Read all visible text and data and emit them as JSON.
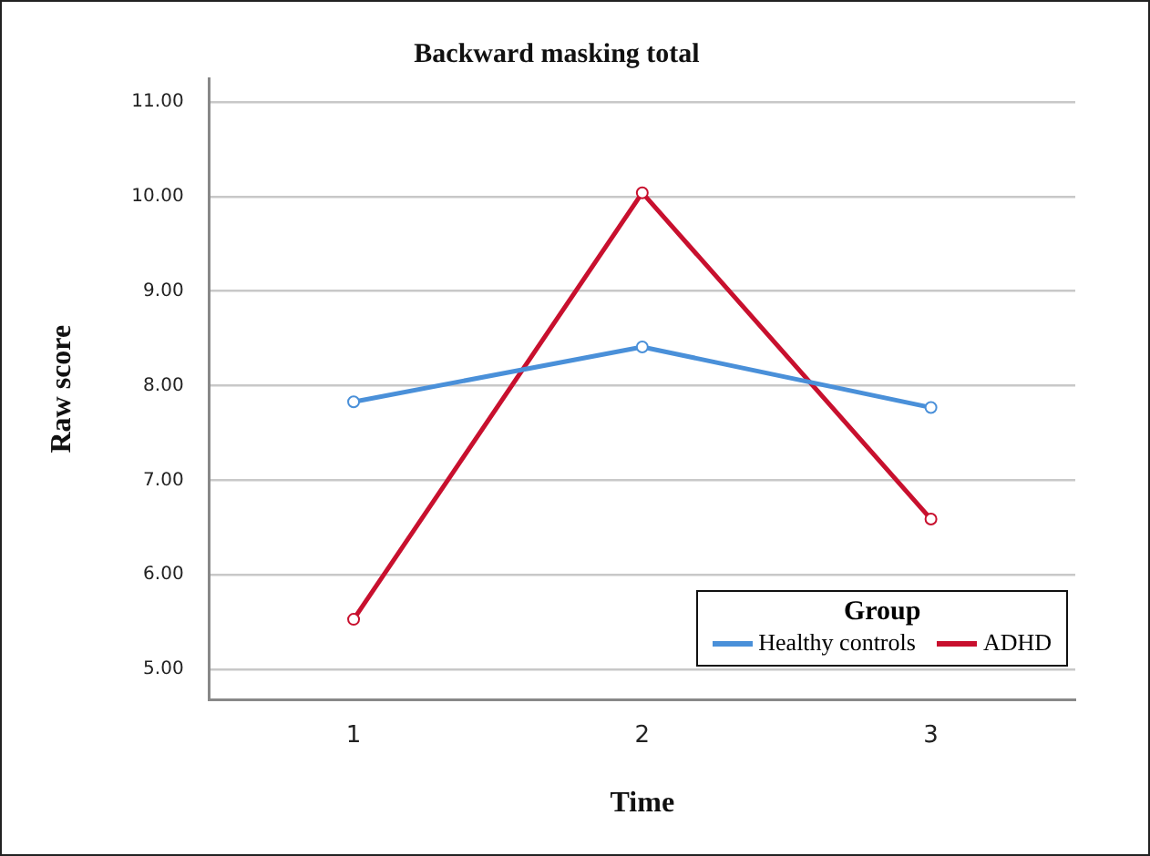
{
  "chart_data": {
    "type": "line",
    "title": "Backward masking total",
    "xlabel": "Time",
    "ylabel": "Raw score",
    "legend_title": "Group",
    "categories": [
      "1",
      "2",
      "3"
    ],
    "series": [
      {
        "name": "Healthy controls",
        "color": "#4a90d9",
        "values": [
          7.83,
          8.41,
          7.77
        ]
      },
      {
        "name": "ADHD",
        "color": "#c8102e",
        "values": [
          5.53,
          10.04,
          6.59
        ]
      }
    ],
    "ylim": [
      4.68,
      11.25
    ],
    "yticks": [
      {
        "value": 5,
        "label": "5.00"
      },
      {
        "value": 6,
        "label": "6.00"
      },
      {
        "value": 7,
        "label": "7.00"
      },
      {
        "value": 8,
        "label": "8.00"
      },
      {
        "value": 9,
        "label": "9.00"
      },
      {
        "value": 10,
        "label": "10.00"
      },
      {
        "value": 11,
        "label": "11.00"
      }
    ],
    "grid": "y",
    "legend": "bottom right",
    "marker": "circle",
    "line_style": "solid"
  }
}
